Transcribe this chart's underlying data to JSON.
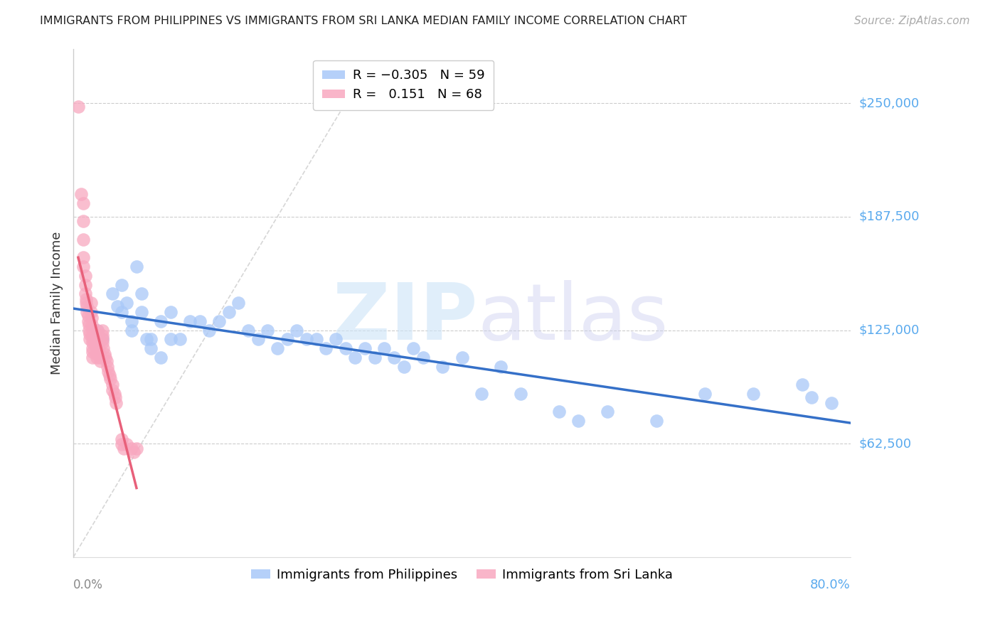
{
  "title": "IMMIGRANTS FROM PHILIPPINES VS IMMIGRANTS FROM SRI LANKA MEDIAN FAMILY INCOME CORRELATION CHART",
  "source": "Source: ZipAtlas.com",
  "ylabel": "Median Family Income",
  "xlim": [
    0.0,
    0.8
  ],
  "ylim": [
    0,
    280000
  ],
  "yticks": [
    62500,
    125000,
    187500,
    250000
  ],
  "ytick_labels": [
    "$62,500",
    "$125,000",
    "$187,500",
    "$250,000"
  ],
  "xtick_left": "0.0%",
  "xtick_right": "80.0%",
  "blue_color": "#a8c8f8",
  "pink_color": "#f8a8c0",
  "blue_line_color": "#3570c8",
  "pink_line_color": "#e8607a",
  "right_label_color": "#5aaaee",
  "legend1_label_blue": "R = -0.305",
  "legend1_label_blue_n": "N = 59",
  "legend1_label_pink": "R =  0.151",
  "legend1_label_pink_n": "N = 68",
  "bottom_legend_phil": "Immigrants from Philippines",
  "bottom_legend_sri": "Immigrants from Sri Lanka",
  "phil_x": [
    0.025,
    0.03,
    0.04,
    0.045,
    0.05,
    0.05,
    0.055,
    0.06,
    0.06,
    0.065,
    0.07,
    0.07,
    0.075,
    0.08,
    0.08,
    0.09,
    0.09,
    0.1,
    0.1,
    0.11,
    0.12,
    0.13,
    0.14,
    0.15,
    0.16,
    0.17,
    0.18,
    0.19,
    0.2,
    0.21,
    0.22,
    0.23,
    0.24,
    0.25,
    0.26,
    0.27,
    0.28,
    0.29,
    0.3,
    0.31,
    0.32,
    0.33,
    0.34,
    0.35,
    0.36,
    0.38,
    0.4,
    0.42,
    0.44,
    0.46,
    0.5,
    0.52,
    0.55,
    0.6,
    0.65,
    0.7,
    0.75,
    0.76,
    0.78
  ],
  "phil_y": [
    125000,
    120000,
    145000,
    138000,
    150000,
    135000,
    140000,
    130000,
    125000,
    160000,
    135000,
    145000,
    120000,
    120000,
    115000,
    130000,
    110000,
    135000,
    120000,
    120000,
    130000,
    130000,
    125000,
    130000,
    135000,
    140000,
    125000,
    120000,
    125000,
    115000,
    120000,
    125000,
    120000,
    120000,
    115000,
    120000,
    115000,
    110000,
    115000,
    110000,
    115000,
    110000,
    105000,
    115000,
    110000,
    105000,
    110000,
    90000,
    105000,
    90000,
    80000,
    75000,
    80000,
    75000,
    90000,
    90000,
    95000,
    88000,
    85000
  ],
  "sri_x": [
    0.005,
    0.008,
    0.01,
    0.01,
    0.01,
    0.01,
    0.01,
    0.012,
    0.012,
    0.012,
    0.013,
    0.013,
    0.014,
    0.014,
    0.015,
    0.015,
    0.016,
    0.016,
    0.017,
    0.017,
    0.018,
    0.018,
    0.019,
    0.019,
    0.02,
    0.02,
    0.02,
    0.02,
    0.02,
    0.02,
    0.02,
    0.021,
    0.022,
    0.022,
    0.023,
    0.023,
    0.024,
    0.025,
    0.025,
    0.026,
    0.026,
    0.027,
    0.028,
    0.028,
    0.03,
    0.03,
    0.03,
    0.03,
    0.031,
    0.032,
    0.033,
    0.034,
    0.035,
    0.036,
    0.037,
    0.038,
    0.04,
    0.04,
    0.042,
    0.043,
    0.044,
    0.05,
    0.05,
    0.052,
    0.055,
    0.06,
    0.062,
    0.065
  ],
  "sri_y": [
    248000,
    200000,
    195000,
    185000,
    175000,
    165000,
    160000,
    155000,
    150000,
    145000,
    142000,
    140000,
    138000,
    135000,
    133000,
    130000,
    128000,
    125000,
    123000,
    120000,
    140000,
    135000,
    132000,
    128000,
    125000,
    122000,
    120000,
    118000,
    115000,
    113000,
    110000,
    125000,
    120000,
    118000,
    115000,
    112000,
    110000,
    125000,
    120000,
    118000,
    115000,
    112000,
    110000,
    108000,
    125000,
    122000,
    120000,
    118000,
    115000,
    112000,
    110000,
    108000,
    105000,
    102000,
    100000,
    98000,
    95000,
    92000,
    90000,
    88000,
    85000,
    65000,
    62000,
    60000,
    62000,
    60000,
    58000,
    60000
  ]
}
